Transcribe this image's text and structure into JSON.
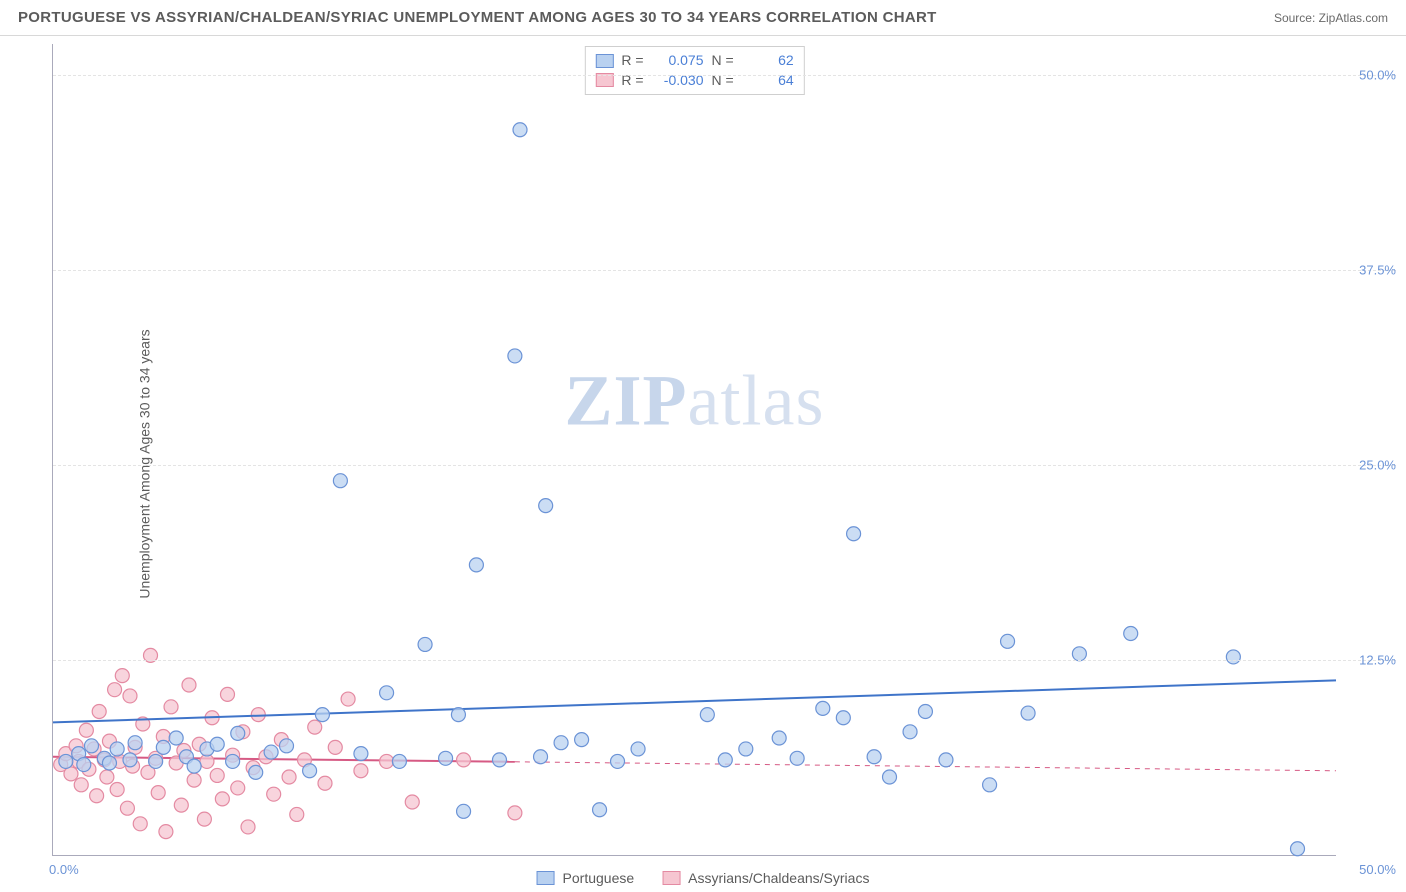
{
  "title": "PORTUGUESE VS ASSYRIAN/CHALDEAN/SYRIAC UNEMPLOYMENT AMONG AGES 30 TO 34 YEARS CORRELATION CHART",
  "source": "Source: ZipAtlas.com",
  "y_axis_label": "Unemployment Among Ages 30 to 34 years",
  "watermark_a": "ZIP",
  "watermark_b": "atlas",
  "chart": {
    "type": "scatter",
    "xlim": [
      0,
      50
    ],
    "ylim": [
      0,
      52
    ],
    "x_origin_label": "0.0%",
    "x_max_label": "50.0%",
    "y_ticks": [
      {
        "v": 12.5,
        "label": "12.5%"
      },
      {
        "v": 25.0,
        "label": "25.0%"
      },
      {
        "v": 37.5,
        "label": "37.5%"
      },
      {
        "v": 50.0,
        "label": "50.0%"
      }
    ],
    "grid_color": "#e4e4e4",
    "background_color": "#ffffff",
    "marker_radius": 7,
    "marker_stroke_width": 1.2,
    "series": [
      {
        "name": "Portuguese",
        "fill": "#b9d1f0",
        "stroke": "#6b93d6",
        "trend": {
          "x1": 0,
          "y1": 8.5,
          "x2": 50,
          "y2": 11.2,
          "solid_until_x": 50,
          "color": "#3f74c9",
          "width": 2
        },
        "stats": {
          "R": "0.075",
          "N": "62"
        },
        "points": [
          [
            0.5,
            6.0
          ],
          [
            1.0,
            6.5
          ],
          [
            1.2,
            5.8
          ],
          [
            1.5,
            7.0
          ],
          [
            2.0,
            6.2
          ],
          [
            2.2,
            5.9
          ],
          [
            2.5,
            6.8
          ],
          [
            3.0,
            6.1
          ],
          [
            3.2,
            7.2
          ],
          [
            4.0,
            6.0
          ],
          [
            4.3,
            6.9
          ],
          [
            4.8,
            7.5
          ],
          [
            5.2,
            6.3
          ],
          [
            5.5,
            5.7
          ],
          [
            6.0,
            6.8
          ],
          [
            6.4,
            7.1
          ],
          [
            7.0,
            6.0
          ],
          [
            7.2,
            7.8
          ],
          [
            7.9,
            5.3
          ],
          [
            8.5,
            6.6
          ],
          [
            9.1,
            7.0
          ],
          [
            10.0,
            5.4
          ],
          [
            10.5,
            9.0
          ],
          [
            11.2,
            24.0
          ],
          [
            12.0,
            6.5
          ],
          [
            13.0,
            10.4
          ],
          [
            13.5,
            6.0
          ],
          [
            14.5,
            13.5
          ],
          [
            15.3,
            6.2
          ],
          [
            15.8,
            9.0
          ],
          [
            16.0,
            2.8
          ],
          [
            16.5,
            18.6
          ],
          [
            17.4,
            6.1
          ],
          [
            18.0,
            32.0
          ],
          [
            18.2,
            46.5
          ],
          [
            19.0,
            6.3
          ],
          [
            19.2,
            22.4
          ],
          [
            19.8,
            7.2
          ],
          [
            20.6,
            7.4
          ],
          [
            21.3,
            2.9
          ],
          [
            22.0,
            6.0
          ],
          [
            22.8,
            6.8
          ],
          [
            25.5,
            9.0
          ],
          [
            26.2,
            6.1
          ],
          [
            27.0,
            6.8
          ],
          [
            28.3,
            7.5
          ],
          [
            29.0,
            6.2
          ],
          [
            30.0,
            9.4
          ],
          [
            30.8,
            8.8
          ],
          [
            31.2,
            20.6
          ],
          [
            32.0,
            6.3
          ],
          [
            32.6,
            5.0
          ],
          [
            33.4,
            7.9
          ],
          [
            34.0,
            9.2
          ],
          [
            34.8,
            6.1
          ],
          [
            36.5,
            4.5
          ],
          [
            37.2,
            13.7
          ],
          [
            38.0,
            9.1
          ],
          [
            40.0,
            12.9
          ],
          [
            42.0,
            14.2
          ],
          [
            46.0,
            12.7
          ],
          [
            48.5,
            0.4
          ]
        ]
      },
      {
        "name": "Assyrians/Chaldeans/Syriacs",
        "fill": "#f6c6d1",
        "stroke": "#e48aa2",
        "trend": {
          "x1": 0,
          "y1": 6.3,
          "x2": 50,
          "y2": 5.4,
          "solid_until_x": 18,
          "color": "#d65a84",
          "width": 2
        },
        "stats": {
          "R": "-0.030",
          "N": "64"
        },
        "points": [
          [
            0.3,
            5.8
          ],
          [
            0.5,
            6.5
          ],
          [
            0.7,
            5.2
          ],
          [
            0.9,
            7.0
          ],
          [
            1.0,
            6.0
          ],
          [
            1.1,
            4.5
          ],
          [
            1.3,
            8.0
          ],
          [
            1.4,
            5.5
          ],
          [
            1.6,
            6.8
          ],
          [
            1.7,
            3.8
          ],
          [
            1.8,
            9.2
          ],
          [
            2.0,
            6.1
          ],
          [
            2.1,
            5.0
          ],
          [
            2.2,
            7.3
          ],
          [
            2.4,
            10.6
          ],
          [
            2.5,
            4.2
          ],
          [
            2.6,
            6.0
          ],
          [
            2.7,
            11.5
          ],
          [
            2.9,
            3.0
          ],
          [
            3.0,
            10.2
          ],
          [
            3.1,
            5.7
          ],
          [
            3.2,
            6.9
          ],
          [
            3.4,
            2.0
          ],
          [
            3.5,
            8.4
          ],
          [
            3.7,
            5.3
          ],
          [
            3.8,
            12.8
          ],
          [
            4.0,
            6.2
          ],
          [
            4.1,
            4.0
          ],
          [
            4.3,
            7.6
          ],
          [
            4.4,
            1.5
          ],
          [
            4.6,
            9.5
          ],
          [
            4.8,
            5.9
          ],
          [
            5.0,
            3.2
          ],
          [
            5.1,
            6.7
          ],
          [
            5.3,
            10.9
          ],
          [
            5.5,
            4.8
          ],
          [
            5.7,
            7.1
          ],
          [
            5.9,
            2.3
          ],
          [
            6.0,
            6.0
          ],
          [
            6.2,
            8.8
          ],
          [
            6.4,
            5.1
          ],
          [
            6.6,
            3.6
          ],
          [
            6.8,
            10.3
          ],
          [
            7.0,
            6.4
          ],
          [
            7.2,
            4.3
          ],
          [
            7.4,
            7.9
          ],
          [
            7.6,
            1.8
          ],
          [
            7.8,
            5.6
          ],
          [
            8.0,
            9.0
          ],
          [
            8.3,
            6.3
          ],
          [
            8.6,
            3.9
          ],
          [
            8.9,
            7.4
          ],
          [
            9.2,
            5.0
          ],
          [
            9.5,
            2.6
          ],
          [
            9.8,
            6.1
          ],
          [
            10.2,
            8.2
          ],
          [
            10.6,
            4.6
          ],
          [
            11.0,
            6.9
          ],
          [
            11.5,
            10.0
          ],
          [
            12.0,
            5.4
          ],
          [
            13.0,
            6.0
          ],
          [
            14.0,
            3.4
          ],
          [
            16.0,
            6.1
          ],
          [
            18.0,
            2.7
          ]
        ]
      }
    ]
  },
  "stats_legend_labels": {
    "R": "R =",
    "N": "N ="
  },
  "bottom_legend": [
    "Portuguese",
    "Assyrians/Chaldeans/Syriacs"
  ]
}
